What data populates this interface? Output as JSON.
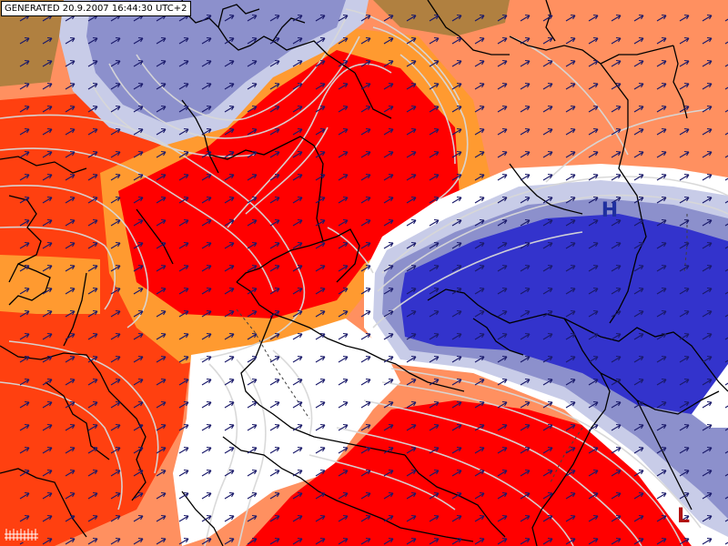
{
  "header": {
    "generated_text": "GENERATED 20.9.2007 16:44:30 UTC+2"
  },
  "pressure_markers": [
    {
      "label": "H",
      "meaning": "high-pressure",
      "color": "#1f2f9f"
    },
    {
      "label": "L",
      "meaning": "low-pressure",
      "color": "#b01010"
    }
  ],
  "colors": {
    "deep_red": "#ff0000",
    "red_orange": "#ff4010",
    "orange": "#ff9a30",
    "salmon": "#ff9060",
    "white": "#ffffff",
    "light_blue": "#c8cce8",
    "lavender": "#8c90cc",
    "royal_blue": "#3333cc",
    "olive_brown": "#b08040",
    "contour_line": "#d8d8d8",
    "border_line": "#000000",
    "wind_arrow": "#1a1a6a"
  },
  "wind_field": {
    "direction": "south-west to north-east",
    "spacing": "regular grid"
  }
}
